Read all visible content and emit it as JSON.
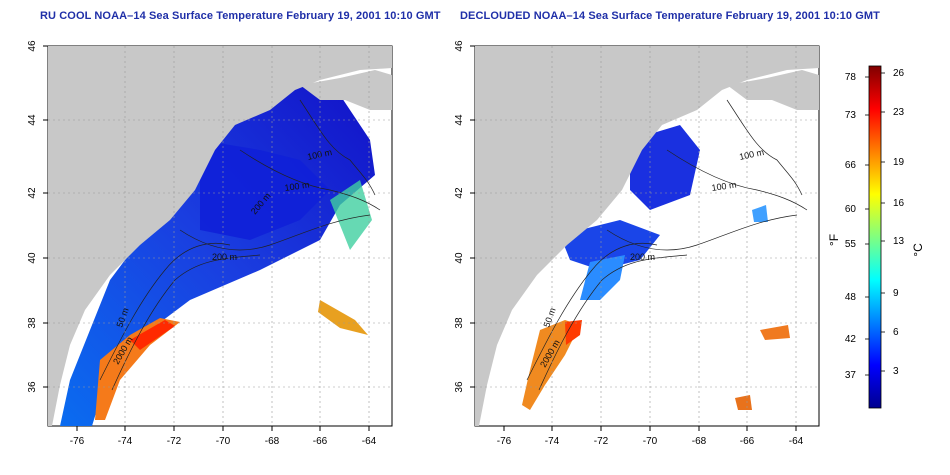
{
  "maps": [
    {
      "title": "RU COOL NOAA–14 Sea Surface Temperature February 19, 2001 10:10 GMT",
      "lon_ticks": [
        "-76",
        "-74",
        "-72",
        "-70",
        "-68",
        "-66",
        "-64"
      ],
      "lat_ticks": [
        "36",
        "38",
        "40",
        "42",
        "44",
        "46"
      ],
      "contour_labels": [
        "100 m",
        "100 m",
        "200 m",
        "200 m",
        "50 m",
        "2000 m"
      ]
    },
    {
      "title": "DECLOUDED NOAA–14 Sea Surface Temperature February 19, 2001 10:10 GMT",
      "lon_ticks": [
        "-76",
        "-74",
        "-72",
        "-70",
        "-68",
        "-66",
        "-64"
      ],
      "lat_ticks": [
        "36",
        "38",
        "40",
        "42",
        "44",
        "46"
      ],
      "contour_labels": [
        "100 m",
        "100 m",
        "200 m",
        "50 m",
        "2000 m"
      ]
    }
  ],
  "colorbar": {
    "fahrenheit_label": "°F",
    "celsius_label": "°C",
    "fahrenheit_ticks": [
      "78",
      "73",
      "66",
      "60",
      "55",
      "48",
      "42",
      "37"
    ],
    "celsius_ticks": [
      "26",
      "23",
      "19",
      "16",
      "13",
      "9",
      "6",
      "3"
    ],
    "colors": [
      "#00008f",
      "#0000ff",
      "#0080ff",
      "#00ffff",
      "#80ff80",
      "#ffff00",
      "#ff8000",
      "#ff0000",
      "#800000"
    ]
  }
}
